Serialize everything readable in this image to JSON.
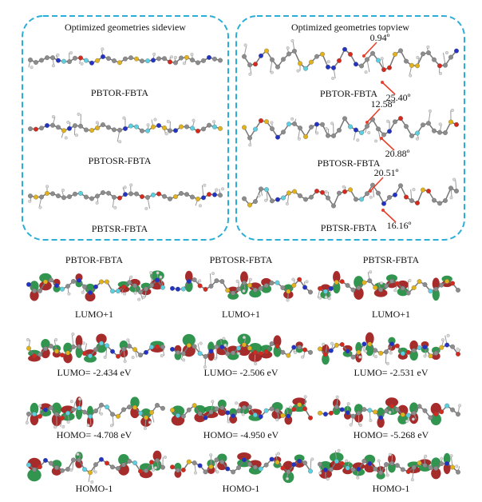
{
  "sideview": {
    "title": "Optimized geometries sideview",
    "labels": [
      "PBTOR-FBTA",
      "PBTOSR-FBTA",
      "PBTSR-FBTA"
    ]
  },
  "topview": {
    "title": "Optimized geometries topview",
    "molecules": [
      {
        "label": "PBTOR-FBTA",
        "angles": [
          "0.94º",
          "25.40º"
        ]
      },
      {
        "label": "PBTOSR-FBTA",
        "angles": [
          "12.58º",
          "20.88º"
        ]
      },
      {
        "label": "PBTSR-FBTA",
        "angles": [
          "20.51º",
          "16.16º"
        ]
      }
    ]
  },
  "orbitals": {
    "columns": [
      "PBTOR-FBTA",
      "PBTOSR-FBTA",
      "PBTSR-FBTA"
    ],
    "rows": [
      [
        "LUMO+1",
        "LUMO+1",
        "LUMO+1"
      ],
      [
        "LUMO= -2.434 eV",
        "LUMO= -2.506 eV",
        "LUMO= -2.531 eV"
      ],
      [
        "HOMO= -4.708 eV",
        "HOMO= -4.950 eV",
        "HOMO= -5.268 eV"
      ],
      [
        "HOMO-1",
        "HOMO-1",
        "HOMO-1"
      ]
    ]
  }
}
